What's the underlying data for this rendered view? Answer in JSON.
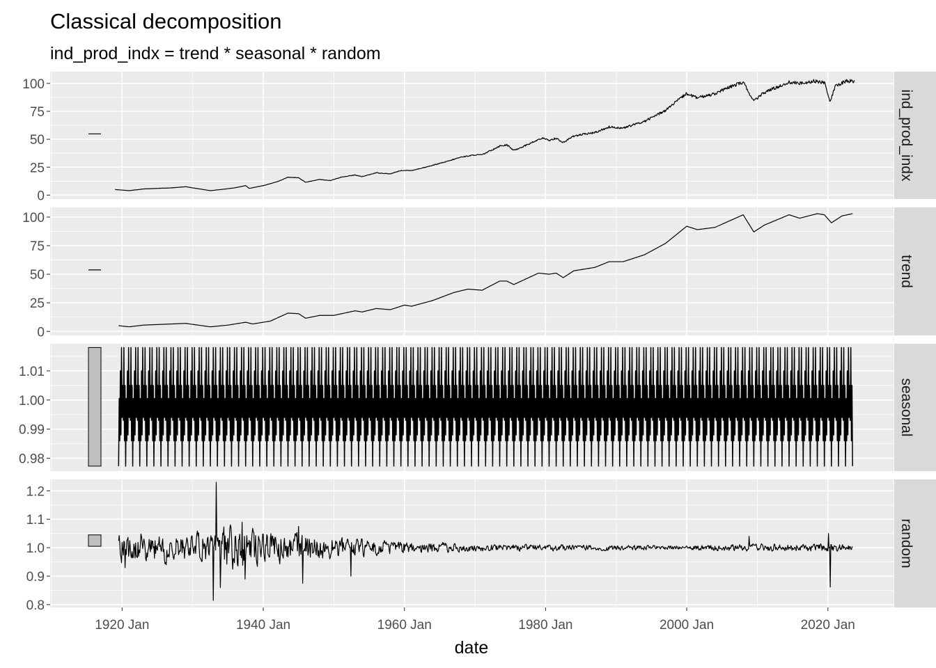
{
  "chart_data": {
    "type": "line",
    "title": "Classical decomposition",
    "subtitle": "ind_prod_indx = trend * seasonal * random",
    "xlabel": "date",
    "x_ticks": [
      {
        "label": "1920 Jan",
        "year": 1920
      },
      {
        "label": "1940 Jan",
        "year": 1940
      },
      {
        "label": "1960 Jan",
        "year": 1960
      },
      {
        "label": "1980 Jan",
        "year": 1980
      },
      {
        "label": "2000 Jan",
        "year": 2000
      },
      {
        "label": "2020 Jan",
        "year": 2020
      }
    ],
    "xlim": [
      1909.8,
      2029.3
    ],
    "grid": true,
    "panels": [
      {
        "strip": "ind_prod_indx",
        "ylim": [
          -3.5,
          110.5
        ],
        "y_ticks": [
          {
            "label": "0",
            "value": 0
          },
          {
            "label": "25",
            "value": 25
          },
          {
            "label": "50",
            "value": 50
          },
          {
            "label": "75",
            "value": 75
          },
          {
            "label": "100",
            "value": 100
          }
        ],
        "scale_bar": {
          "low": 54.5,
          "high": 55.1
        },
        "series": [
          {
            "year": 1919.0,
            "value": 5.0
          },
          {
            "year": 1921.0,
            "value": 4.0
          },
          {
            "year": 1923.0,
            "value": 5.5
          },
          {
            "year": 1925.0,
            "value": 6.0
          },
          {
            "year": 1927.0,
            "value": 6.5
          },
          {
            "year": 1929.0,
            "value": 7.5
          },
          {
            "year": 1930.5,
            "value": 6.0
          },
          {
            "year": 1932.5,
            "value": 4.0
          },
          {
            "year": 1934.0,
            "value": 5.0
          },
          {
            "year": 1936.0,
            "value": 6.5
          },
          {
            "year": 1937.5,
            "value": 8.5
          },
          {
            "year": 1938.0,
            "value": 6.0
          },
          {
            "year": 1940.0,
            "value": 8.5
          },
          {
            "year": 1942.0,
            "value": 12.0
          },
          {
            "year": 1943.5,
            "value": 16.0
          },
          {
            "year": 1945.0,
            "value": 15.5
          },
          {
            "year": 1946.0,
            "value": 11.5
          },
          {
            "year": 1948.0,
            "value": 14.0
          },
          {
            "year": 1949.5,
            "value": 13.0
          },
          {
            "year": 1951.0,
            "value": 16.0
          },
          {
            "year": 1953.0,
            "value": 18.0
          },
          {
            "year": 1954.0,
            "value": 16.5
          },
          {
            "year": 1956.0,
            "value": 20.0
          },
          {
            "year": 1958.0,
            "value": 19.0
          },
          {
            "year": 1959.5,
            "value": 22.0
          },
          {
            "year": 1961.0,
            "value": 22.0
          },
          {
            "year": 1963.0,
            "value": 25.0
          },
          {
            "year": 1966.0,
            "value": 30.0
          },
          {
            "year": 1968.0,
            "value": 34.0
          },
          {
            "year": 1970.0,
            "value": 36.0
          },
          {
            "year": 1971.0,
            "value": 36.0
          },
          {
            "year": 1973.5,
            "value": 44.0
          },
          {
            "year": 1974.5,
            "value": 45.0
          },
          {
            "year": 1975.5,
            "value": 40.0
          },
          {
            "year": 1977.0,
            "value": 44.0
          },
          {
            "year": 1979.5,
            "value": 51.0
          },
          {
            "year": 1980.5,
            "value": 49.0
          },
          {
            "year": 1981.5,
            "value": 51.0
          },
          {
            "year": 1982.5,
            "value": 47.0
          },
          {
            "year": 1984.0,
            "value": 53.0
          },
          {
            "year": 1987.0,
            "value": 56.0
          },
          {
            "year": 1989.0,
            "value": 61.0
          },
          {
            "year": 1991.0,
            "value": 60.0
          },
          {
            "year": 1994.0,
            "value": 66.0
          },
          {
            "year": 1997.0,
            "value": 76.0
          },
          {
            "year": 2000.0,
            "value": 91.0
          },
          {
            "year": 2001.5,
            "value": 87.0
          },
          {
            "year": 2004.0,
            "value": 91.0
          },
          {
            "year": 2007.0,
            "value": 99.0
          },
          {
            "year": 2008.0,
            "value": 101.0
          },
          {
            "year": 2009.5,
            "value": 84.0
          },
          {
            "year": 2011.0,
            "value": 92.0
          },
          {
            "year": 2014.5,
            "value": 101.0
          },
          {
            "year": 2016.0,
            "value": 100.0
          },
          {
            "year": 2018.0,
            "value": 102.0
          },
          {
            "year": 2019.5,
            "value": 101.0
          },
          {
            "year": 2020.3,
            "value": 83.0
          },
          {
            "year": 2021.0,
            "value": 97.0
          },
          {
            "year": 2022.5,
            "value": 102.0
          },
          {
            "year": 2023.8,
            "value": 102.0
          }
        ]
      },
      {
        "strip": "trend",
        "ylim": [
          -3.5,
          108.5
        ],
        "y_ticks": [
          {
            "label": "0",
            "value": 0
          },
          {
            "label": "25",
            "value": 25
          },
          {
            "label": "50",
            "value": 50
          },
          {
            "label": "75",
            "value": 75
          },
          {
            "label": "100",
            "value": 100
          }
        ],
        "scale_bar": {
          "low": 53.5,
          "high": 54.1
        },
        "series": [
          {
            "year": 1919.5,
            "value": 5.0
          },
          {
            "year": 1921.0,
            "value": 4.0
          },
          {
            "year": 1923.0,
            "value": 5.5
          },
          {
            "year": 1925.0,
            "value": 6.0
          },
          {
            "year": 1929.0,
            "value": 7.0
          },
          {
            "year": 1932.5,
            "value": 4.0
          },
          {
            "year": 1935.0,
            "value": 5.5
          },
          {
            "year": 1937.5,
            "value": 8.0
          },
          {
            "year": 1938.5,
            "value": 6.5
          },
          {
            "year": 1941.0,
            "value": 9.0
          },
          {
            "year": 1943.5,
            "value": 16.0
          },
          {
            "year": 1945.0,
            "value": 15.5
          },
          {
            "year": 1946.0,
            "value": 11.5
          },
          {
            "year": 1948.0,
            "value": 14.0
          },
          {
            "year": 1950.0,
            "value": 14.0
          },
          {
            "year": 1953.0,
            "value": 18.0
          },
          {
            "year": 1954.0,
            "value": 17.0
          },
          {
            "year": 1956.0,
            "value": 20.0
          },
          {
            "year": 1958.0,
            "value": 19.0
          },
          {
            "year": 1960.0,
            "value": 23.0
          },
          {
            "year": 1961.0,
            "value": 22.0
          },
          {
            "year": 1964.0,
            "value": 27.0
          },
          {
            "year": 1967.0,
            "value": 34.0
          },
          {
            "year": 1969.0,
            "value": 37.0
          },
          {
            "year": 1971.0,
            "value": 36.0
          },
          {
            "year": 1973.5,
            "value": 44.0
          },
          {
            "year": 1974.5,
            "value": 44.0
          },
          {
            "year": 1975.5,
            "value": 41.0
          },
          {
            "year": 1979.0,
            "value": 51.0
          },
          {
            "year": 1980.5,
            "value": 50.0
          },
          {
            "year": 1981.5,
            "value": 51.0
          },
          {
            "year": 1982.5,
            "value": 47.0
          },
          {
            "year": 1984.0,
            "value": 53.0
          },
          {
            "year": 1987.0,
            "value": 56.0
          },
          {
            "year": 1989.0,
            "value": 61.0
          },
          {
            "year": 1991.0,
            "value": 61.0
          },
          {
            "year": 1994.0,
            "value": 67.0
          },
          {
            "year": 1997.0,
            "value": 77.0
          },
          {
            "year": 2000.0,
            "value": 92.0
          },
          {
            "year": 2001.5,
            "value": 89.0
          },
          {
            "year": 2004.0,
            "value": 91.0
          },
          {
            "year": 2008.0,
            "value": 102.0
          },
          {
            "year": 2009.5,
            "value": 87.0
          },
          {
            "year": 2011.0,
            "value": 93.0
          },
          {
            "year": 2014.5,
            "value": 102.0
          },
          {
            "year": 2016.0,
            "value": 99.0
          },
          {
            "year": 2018.5,
            "value": 103.0
          },
          {
            "year": 2019.5,
            "value": 102.0
          },
          {
            "year": 2020.5,
            "value": 95.0
          },
          {
            "year": 2022.0,
            "value": 101.0
          },
          {
            "year": 2023.5,
            "value": 103.0
          }
        ]
      },
      {
        "strip": "seasonal",
        "ylim": [
          0.9756,
          1.0193
        ],
        "y_ticks": [
          {
            "label": "0.98",
            "value": 0.98
          },
          {
            "label": "0.99",
            "value": 0.99
          },
          {
            "label": "1.00",
            "value": 1.0
          },
          {
            "label": "1.01",
            "value": 1.01
          }
        ],
        "scale_bar": {
          "low": 0.9773,
          "high": 1.018
        },
        "start_year": 1919.5,
        "end_year": 2023.5,
        "pattern": [
          0.9773,
          1.0005,
          0.986,
          1.01,
          0.988,
          1.018,
          0.994,
          1.005,
          0.993,
          1.018,
          0.986,
          1.005
        ]
      },
      {
        "strip": "random",
        "ylim": [
          0.79,
          1.24
        ],
        "y_ticks": [
          {
            "label": "0.8",
            "value": 0.8
          },
          {
            "label": "0.9",
            "value": 0.9
          },
          {
            "label": "1.0",
            "value": 1.0
          },
          {
            "label": "1.1",
            "value": 1.1
          },
          {
            "label": "1.2",
            "value": 1.2
          }
        ],
        "scale_bar": {
          "low": 1.005,
          "high": 1.045
        },
        "start_year": 1919.5,
        "end_year": 2023.5,
        "amplitude_envelope": [
          {
            "year": 1919.5,
            "amp": 0.06
          },
          {
            "year": 1930.0,
            "amp": 0.05
          },
          {
            "year": 1935.0,
            "amp": 0.09
          },
          {
            "year": 1940.0,
            "amp": 0.06
          },
          {
            "year": 1946.0,
            "amp": 0.05
          },
          {
            "year": 1952.0,
            "amp": 0.035
          },
          {
            "year": 1960.0,
            "amp": 0.025
          },
          {
            "year": 1970.0,
            "amp": 0.015
          },
          {
            "year": 1980.0,
            "amp": 0.012
          },
          {
            "year": 1990.0,
            "amp": 0.01
          },
          {
            "year": 2000.0,
            "amp": 0.008
          },
          {
            "year": 2008.0,
            "amp": 0.015
          },
          {
            "year": 2019.0,
            "amp": 0.015
          },
          {
            "year": 2023.5,
            "amp": 0.012
          }
        ],
        "spikes": [
          {
            "year": 1920.4,
            "value": 0.93
          },
          {
            "year": 1933.3,
            "value": 1.23
          },
          {
            "year": 1932.9,
            "value": 0.815
          },
          {
            "year": 1933.9,
            "value": 0.86
          },
          {
            "year": 1937.4,
            "value": 0.89
          },
          {
            "year": 1937.0,
            "value": 1.09
          },
          {
            "year": 1945.6,
            "value": 0.875
          },
          {
            "year": 1945.0,
            "value": 1.075
          },
          {
            "year": 1952.4,
            "value": 0.9
          },
          {
            "year": 2020.3,
            "value": 0.862
          },
          {
            "year": 2020.1,
            "value": 1.05
          },
          {
            "year": 2008.8,
            "value": 1.04
          }
        ]
      }
    ]
  }
}
